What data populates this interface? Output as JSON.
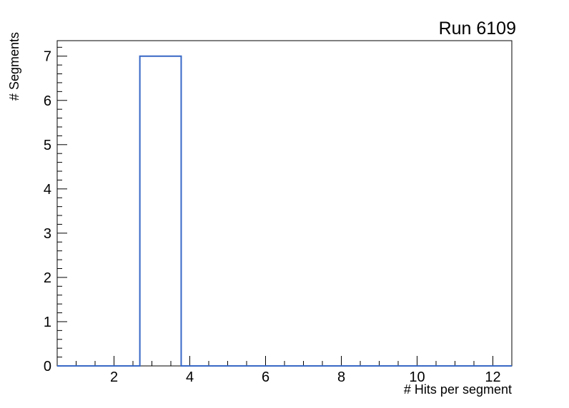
{
  "window": {
    "background_color": "#ffffff"
  },
  "chart_data": {
    "type": "bar",
    "style": "histogram-outline",
    "title": "Run 6109",
    "xlabel": "# Hits per segment",
    "ylabel": "# Segments",
    "xlim": [
      0.5,
      12.5
    ],
    "ylim": [
      0,
      7.35
    ],
    "grid": false,
    "legend": false,
    "bins": {
      "count": 11,
      "xmin": 0.5,
      "xmax": 12.5
    },
    "values": [
      0,
      0,
      7,
      0,
      0,
      0,
      0,
      0,
      0,
      0,
      0
    ],
    "peak_bin": {
      "x_low": 2.68,
      "x_high": 3.77,
      "height": 7
    },
    "x_major_ticks": [
      2,
      4,
      6,
      8,
      10,
      12
    ],
    "x_minor_step": 0.5,
    "y_major_ticks": [
      0,
      1,
      2,
      3,
      4,
      5,
      6,
      7
    ],
    "y_minor_step": 0.2,
    "colors": {
      "line": "#3767c6",
      "axis": "#000000",
      "text": "#000000",
      "background": "#ffffff"
    }
  }
}
